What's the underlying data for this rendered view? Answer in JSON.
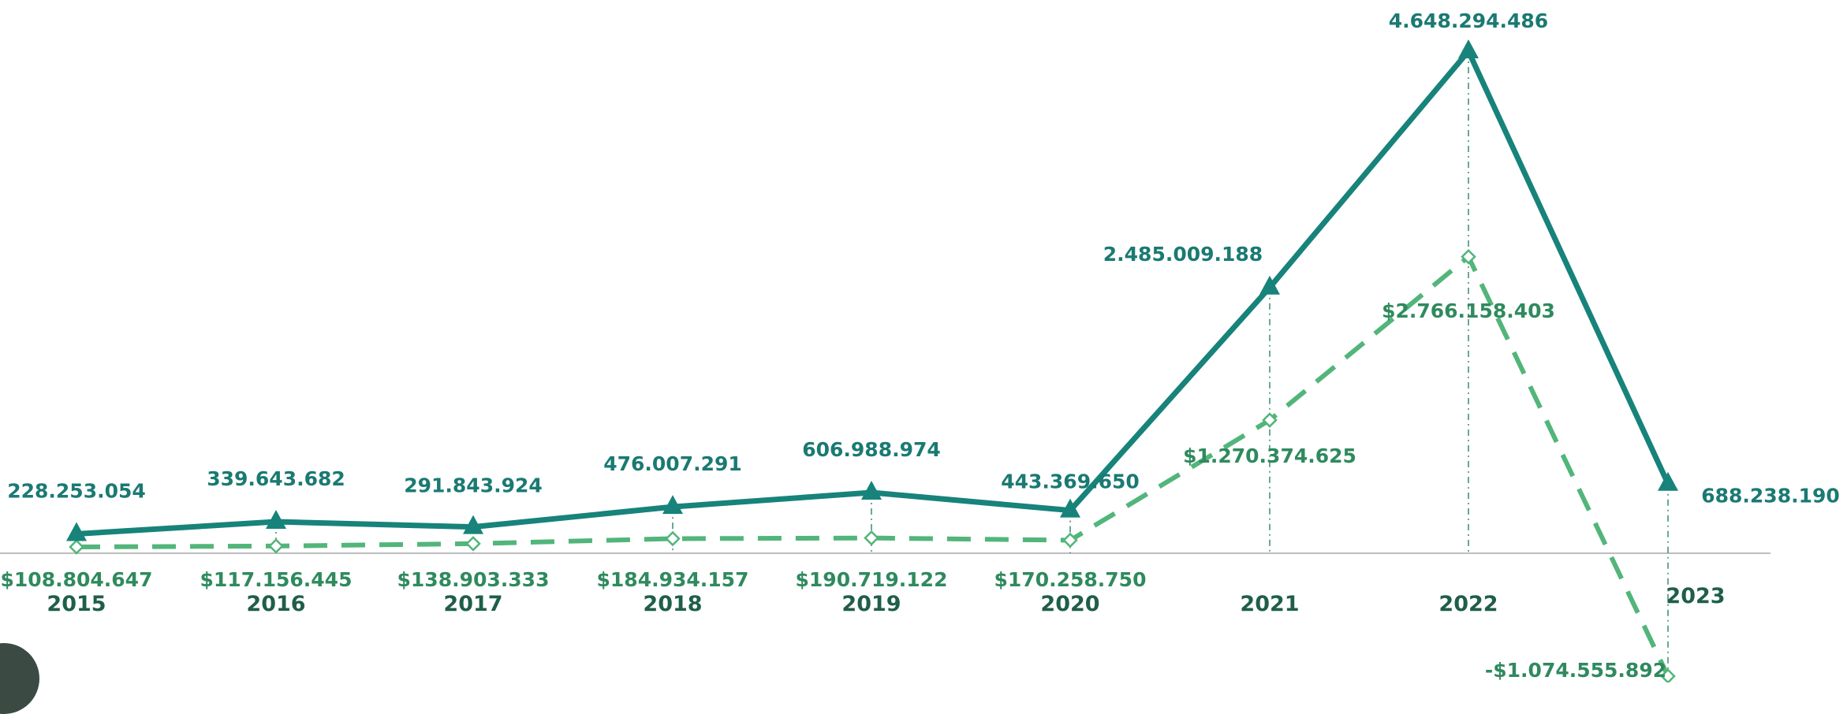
{
  "chart_data": {
    "type": "line",
    "categories": [
      "2015",
      "2016",
      "2017",
      "2018",
      "2019",
      "2020",
      "2021",
      "2022",
      "2023"
    ],
    "series": [
      {
        "values": [
          228253054,
          339643682,
          291843924,
          476007291,
          606988974,
          443369650,
          2485009188,
          4648294486,
          688238190
        ],
        "labels": [
          "228.253.054",
          "339.643.682",
          "291.843.924",
          "476.007.291",
          "606.988.974",
          "443.369.650",
          "2.485.009.188",
          "4.648.294.486",
          "688.238.190"
        ],
        "style": "solid",
        "marker": "triangle",
        "color": "#17837a"
      },
      {
        "values": [
          108804647,
          117156445,
          138903333,
          184934157,
          190719122,
          170258750,
          1270374625,
          2766158403,
          -1074555892
        ],
        "labels": [
          "$108.804.647",
          "$117.156.445",
          "$138.903.333",
          "$184.934.157",
          "$190.719.122",
          "$170.258.750",
          "$1.270.374.625",
          "$2.766.158.403",
          "-$1.074.555.892"
        ],
        "style": "dashed",
        "marker": "diamond",
        "color": "#52b57a"
      }
    ],
    "ylim": [
      -1074555892,
      4648294486
    ],
    "grid": false,
    "legend": "none",
    "label_colors": {
      "solid": "#1a7a72",
      "dashed": "#2f8a5e",
      "year": "#1f5e4a"
    }
  }
}
